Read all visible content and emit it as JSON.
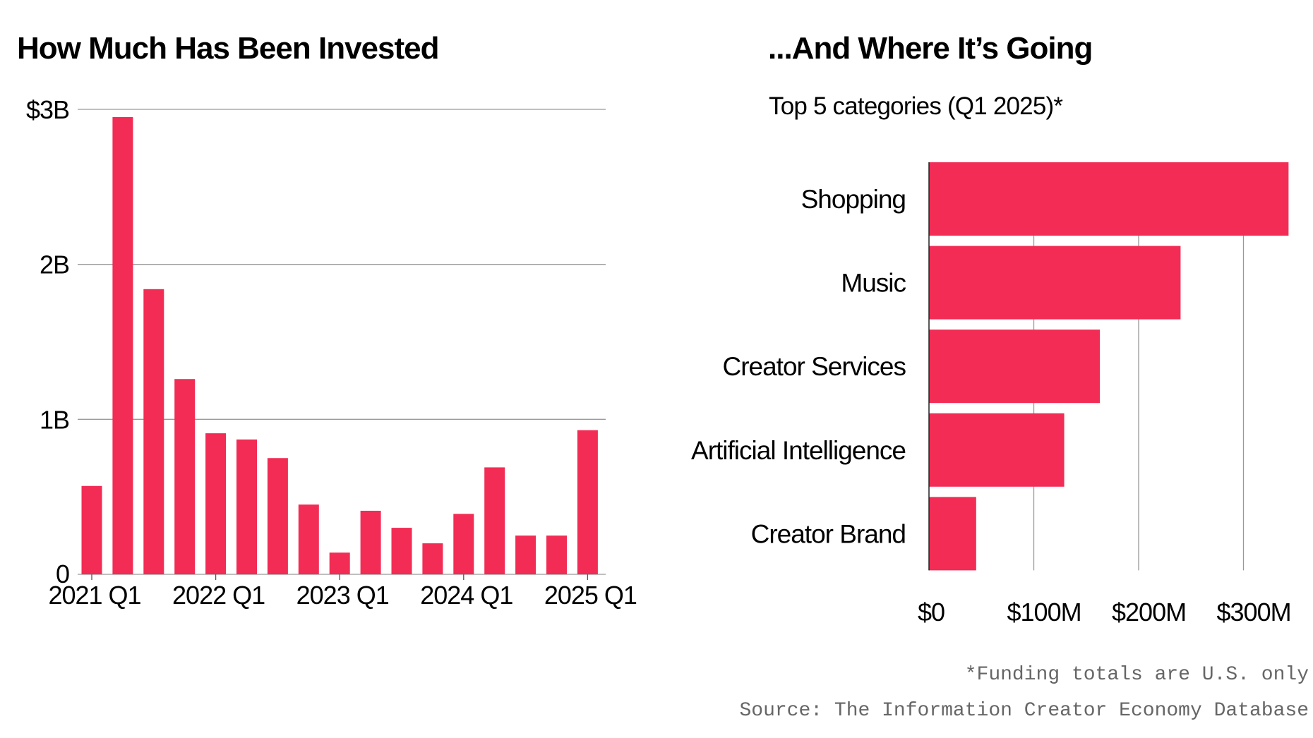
{
  "colors": {
    "bar": "#f22c54",
    "grid": "#999999",
    "footnote": "#666666"
  },
  "chart_data": [
    {
      "type": "bar",
      "title": "How Much Has Been Invested",
      "xlabel": "",
      "ylabel": "",
      "categories": [
        "2021 Q1",
        "2021 Q2",
        "2021 Q3",
        "2021 Q4",
        "2022 Q1",
        "2022 Q2",
        "2022 Q3",
        "2022 Q4",
        "2023 Q1",
        "2023 Q2",
        "2023 Q3",
        "2023 Q4",
        "2024 Q1",
        "2024 Q2",
        "2024 Q3",
        "2024 Q4",
        "2025 Q1"
      ],
      "values": [
        0.57,
        2.95,
        1.84,
        1.26,
        0.91,
        0.87,
        0.75,
        0.45,
        0.14,
        0.41,
        0.3,
        0.2,
        0.39,
        0.69,
        0.25,
        0.25,
        0.93
      ],
      "unit": "billion USD",
      "ylim": [
        0,
        3
      ],
      "yticks": [
        {
          "value": 0,
          "label": "0"
        },
        {
          "value": 1,
          "label": "1B"
        },
        {
          "value": 2,
          "label": "2B"
        },
        {
          "value": 3,
          "label": "$3B"
        }
      ],
      "xtick_labels": [
        "2021 Q1",
        "2022 Q1",
        "2023 Q1",
        "2024 Q1",
        "2025 Q1"
      ],
      "grid": true
    },
    {
      "type": "bar",
      "orientation": "horizontal",
      "title": "...And Where It’s Going",
      "subtitle": "Top 5 categories (Q1 2025)*",
      "categories": [
        "Shopping",
        "Music",
        "Creator Services",
        "Artificial Intelligence",
        "Creator Brand"
      ],
      "values": [
        343,
        240,
        163,
        129,
        45
      ],
      "unit": "million USD",
      "xlim": [
        0,
        343
      ],
      "xticks": [
        {
          "value": 0,
          "label": "$0"
        },
        {
          "value": 100,
          "label": "$100M"
        },
        {
          "value": 200,
          "label": "$200M"
        },
        {
          "value": 300,
          "label": "$300M"
        }
      ],
      "grid": true
    }
  ],
  "footnotes": {
    "note": "*Funding totals are U.S. only",
    "source": "Source: The Information Creator Economy Database"
  }
}
